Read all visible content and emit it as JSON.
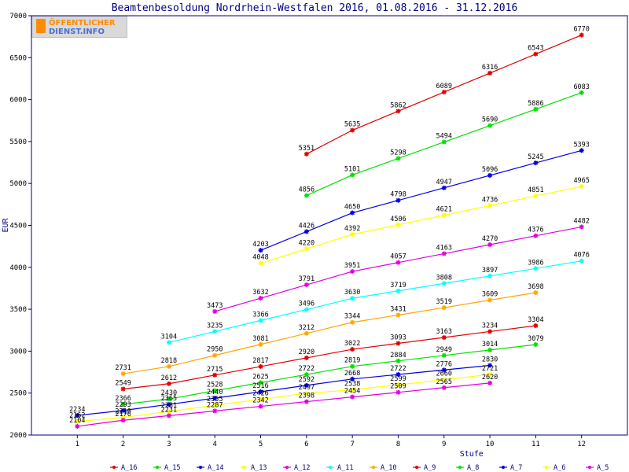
{
  "chart_data": {
    "type": "line",
    "title": "Beamtenbesoldung Nordrhein-Westfalen 2016, 01.08.2016 - 31.12.2016",
    "xlabel": "Stufe",
    "ylabel": "EUR",
    "xlim": [
      0,
      13
    ],
    "ylim": [
      2000,
      7000
    ],
    "x_ticks": [
      1,
      2,
      3,
      4,
      5,
      6,
      7,
      8,
      9,
      10,
      11,
      12
    ],
    "y_ticks": [
      2000,
      2500,
      3000,
      3500,
      4000,
      4500,
      5000,
      5500,
      6000,
      6500,
      7000
    ],
    "grid": false,
    "legend_position": "bottom",
    "logo_text": "ÖFFENTLICHER DIENST.INFO",
    "series": [
      {
        "name": "A_16",
        "color": "#e00000",
        "x": [
          6,
          7,
          8,
          9,
          10,
          11,
          12
        ],
        "values": [
          5351,
          5635,
          5862,
          6089,
          6316,
          6543,
          6770
        ]
      },
      {
        "name": "A_15",
        "color": "#00e000",
        "x": [
          6,
          7,
          8,
          9,
          10,
          11,
          12
        ],
        "values": [
          4856,
          5101,
          5298,
          5494,
          5690,
          5886,
          6083
        ]
      },
      {
        "name": "A_14",
        "color": "#0000e0",
        "x": [
          5,
          6,
          7,
          8,
          9,
          10,
          11,
          12
        ],
        "values": [
          4203,
          4426,
          4650,
          4798,
          4947,
          5096,
          5245,
          5393
        ]
      },
      {
        "name": "A_13",
        "color": "#ffff00",
        "x": [
          5,
          6,
          7,
          8,
          9,
          10,
          11,
          12
        ],
        "values": [
          4048,
          4220,
          4392,
          4506,
          4621,
          4736,
          4851,
          4965
        ]
      },
      {
        "name": "A_12",
        "color": "#e000e0",
        "x": [
          4,
          5,
          6,
          7,
          8,
          9,
          10,
          11,
          12
        ],
        "values": [
          3473,
          3632,
          3791,
          3951,
          4057,
          4163,
          4270,
          4376,
          4482
        ]
      },
      {
        "name": "A_11",
        "color": "#00ffff",
        "x": [
          3,
          4,
          5,
          6,
          7,
          8,
          9,
          10,
          11,
          12
        ],
        "values": [
          3104,
          3235,
          3366,
          3496,
          3630,
          3719,
          3808,
          3897,
          3986,
          4076
        ]
      },
      {
        "name": "A_10",
        "color": "#ffa500",
        "x": [
          2,
          3,
          4,
          5,
          6,
          7,
          8,
          9,
          10,
          11
        ],
        "values": [
          2731,
          2818,
          2950,
          3081,
          3212,
          3344,
          3431,
          3519,
          3609,
          3698
        ]
      },
      {
        "name": "A_9",
        "color": "#e00000",
        "x": [
          2,
          3,
          4,
          5,
          6,
          7,
          8,
          9,
          10,
          11
        ],
        "values": [
          2549,
          2612,
          2715,
          2817,
          2920,
          3022,
          3093,
          3163,
          3234,
          3304
        ]
      },
      {
        "name": "A_8",
        "color": "#00e000",
        "x": [
          2,
          3,
          4,
          5,
          6,
          7,
          8,
          9,
          10,
          11
        ],
        "values": [
          2366,
          2430,
          2528,
          2625,
          2722,
          2819,
          2884,
          2949,
          3014,
          3079
        ]
      },
      {
        "name": "A_7",
        "color": "#0000e0",
        "x": [
          1,
          2,
          3,
          4,
          5,
          6,
          7,
          8,
          9,
          10
        ],
        "values": [
          2234,
          2293,
          2365,
          2440,
          2516,
          2592,
          2668,
          2722,
          2776,
          2830
        ]
      },
      {
        "name": "A_6",
        "color": "#ffff00",
        "x": [
          1,
          2,
          3,
          4,
          5,
          6,
          7,
          8,
          9,
          10
        ],
        "values": [
          2162,
          2210,
          2281,
          2355,
          2426,
          2497,
          2538,
          2599,
          2660,
          2721
        ]
      },
      {
        "name": "A_5",
        "color": "#e000e0",
        "x": [
          1,
          2,
          3,
          4,
          5,
          6,
          7,
          8,
          9,
          10
        ],
        "values": [
          2104,
          2176,
          2231,
          2287,
          2342,
          2398,
          2454,
          2509,
          2565,
          2620
        ]
      }
    ]
  }
}
